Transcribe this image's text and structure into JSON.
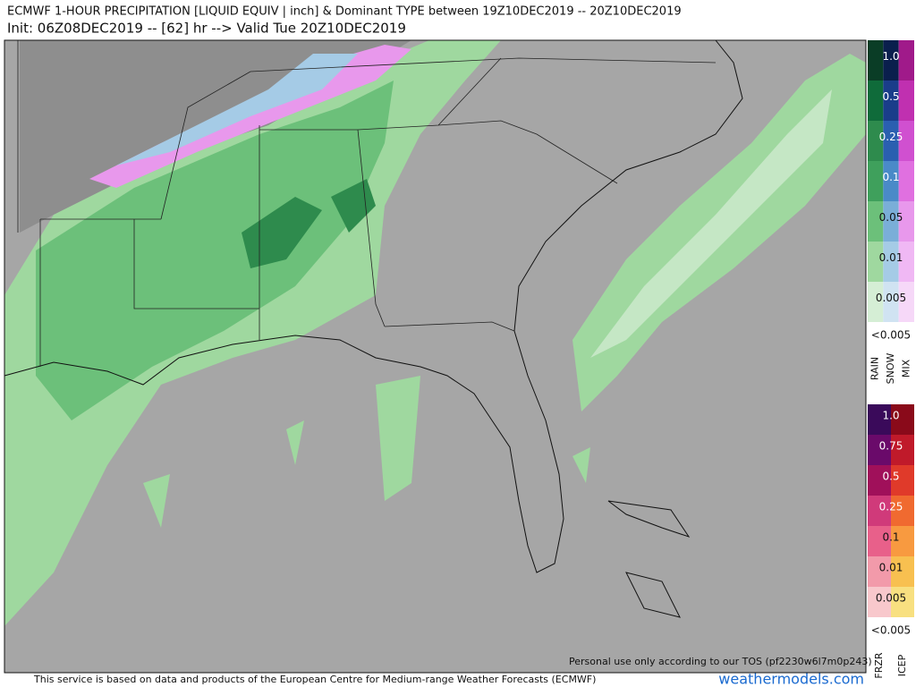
{
  "header": {
    "title": "ECMWF 1-HOUR PRECIPITATION [LIQUID EQUIV | inch] & Dominant TYPE between 19Z10DEC2019 -- 20Z10DEC2019",
    "subtitle": "Init: 06Z08DEC2019 -- [62] hr --> Valid Tue 20Z10DEC2019"
  },
  "legend_top": {
    "levels": [
      "1.0",
      "0.5",
      "0.25",
      "0.1",
      "0.05",
      "0.01",
      "0.005"
    ],
    "below": "<0.005",
    "types": [
      "RAIN",
      "SNOW",
      "MIX"
    ]
  },
  "legend_bottom": {
    "levels": [
      "1.0",
      "0.75",
      "0.5",
      "0.25",
      "0.1",
      "0.01",
      "0.005"
    ],
    "below": "<0.005",
    "types": [
      "FRZR",
      "ICEP"
    ]
  },
  "footer": {
    "credit": "This service is based on data and products of the European Centre for Medium-range Weather Forecasts (ECMWF)",
    "notice": "Personal use only according to our TOS (pf2230w6l7m0p243)",
    "site": "weathermodels.com"
  }
}
